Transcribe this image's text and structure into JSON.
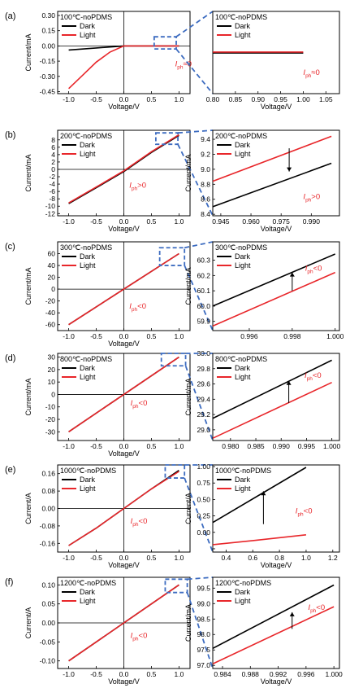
{
  "figure": {
    "colors": {
      "dark": "#000000",
      "light": "#e8262a",
      "zoom": "#3d6cc0",
      "axis": "#000000"
    }
  },
  "chart_data": [
    {
      "panel": "(a)",
      "side": "main",
      "type": "line",
      "title": "100℃-noPDMS",
      "xlabel": "Voltage/V",
      "ylabel": "Current/mA",
      "xlim": [
        -1.2,
        1.2
      ],
      "ylim": [
        -0.47,
        0.34
      ],
      "xticks": [
        -1.0,
        -0.5,
        0.0,
        0.5,
        1.0
      ],
      "xticklabels": [
        "-1.0",
        "-0.5",
        "0.0",
        "0.5",
        "1.0"
      ],
      "yticks": [
        0.3,
        0.15,
        0.0,
        -0.15,
        -0.3,
        -0.45
      ],
      "yticklabels": [
        "0.30",
        "0.15",
        "0.00",
        "-0.15",
        "-0.30",
        "-0.45"
      ],
      "series": [
        {
          "name": "Dark",
          "x": [
            -1.0,
            -0.5,
            0.0,
            0.5,
            1.0
          ],
          "y": [
            -0.04,
            -0.02,
            0.0,
            0.0,
            0.0
          ]
        },
        {
          "name": "Light",
          "x": [
            -1.0,
            -0.75,
            -0.5,
            -0.25,
            0.0,
            0.5,
            1.0
          ],
          "y": [
            -0.42,
            -0.29,
            -0.16,
            -0.06,
            0.0,
            0.0,
            0.0
          ]
        }
      ],
      "annotation": "ph",
      "annotation_sym": "≈",
      "annotation_val": "0",
      "ann_x": 0.93,
      "ann_y": -0.2
    },
    {
      "panel": "(a)",
      "side": "zoom",
      "type": "line",
      "title": "100℃-noPDMS",
      "xlabel": "Voltage/V",
      "ylabel": "",
      "xlim": [
        0.8,
        1.08
      ],
      "ylim": [
        -0.42,
        0.42
      ],
      "xticks": [
        0.8,
        0.85,
        0.9,
        0.95,
        1.0,
        1.05
      ],
      "xticklabels": [
        "0.80",
        "0.85",
        "0.90",
        "0.95",
        "1.00",
        "1.05"
      ],
      "yticks": [],
      "yticklabels": [],
      "series": [
        {
          "name": "Dark",
          "x": [
            0.8,
            1.0
          ],
          "y": [
            -0.005,
            -0.005
          ]
        },
        {
          "name": "Light",
          "x": [
            0.8,
            1.0
          ],
          "y": [
            0.005,
            0.005
          ]
        }
      ],
      "annotation": "ph",
      "annotation_sym": "≈",
      "annotation_val": "0",
      "ann_x": 1.0,
      "ann_y": -0.23
    },
    {
      "panel": "(b)",
      "side": "main",
      "type": "line",
      "title": "200℃-noPDMS",
      "xlabel": "Voltage/V",
      "ylabel": "Current/mA",
      "xlim": [
        -1.2,
        1.2
      ],
      "ylim": [
        -12.6,
        10.6
      ],
      "xticks": [
        -1.0,
        -0.5,
        0.0,
        0.5,
        1.0
      ],
      "xticklabels": [
        "-1.0",
        "-0.5",
        "0.0",
        "0.5",
        "1.0"
      ],
      "yticks": [
        8,
        6,
        4,
        2,
        0,
        -2,
        -4,
        -6,
        -8,
        -10,
        -12
      ],
      "yticklabels": [
        "8",
        "6",
        "4",
        "2",
        "0",
        "-2",
        "-4",
        "-6",
        "-8",
        "-10",
        "-12"
      ],
      "series": [
        {
          "name": "Dark",
          "x": [
            -1.0,
            -0.5,
            0.0,
            0.5,
            1.0
          ],
          "y": [
            -9.3,
            -5.0,
            -0.6,
            4.6,
            9.2
          ]
        },
        {
          "name": "Light",
          "x": [
            -1.0,
            -0.5,
            0.0,
            0.5,
            1.0
          ],
          "y": [
            -9.1,
            -4.8,
            -0.4,
            4.8,
            9.4
          ]
        }
      ],
      "annotation": "ph",
      "annotation_sym": ">",
      "annotation_val": "0",
      "ann_x": 0.1,
      "ann_y": -5.0
    },
    {
      "panel": "(b)",
      "side": "zoom",
      "type": "line",
      "title": "200℃-noPDMS",
      "xlabel": "Voltage/V",
      "ylabel": "Current/mA",
      "xlim": [
        0.941,
        1.004
      ],
      "ylim": [
        8.38,
        9.52
      ],
      "xticks": [
        0.945,
        0.96,
        0.975,
        0.99
      ],
      "xticklabels": [
        "0.945",
        "0.960",
        "0.975",
        "0.990"
      ],
      "yticks": [
        9.4,
        9.2,
        9.0,
        8.8,
        8.6,
        8.4
      ],
      "yticklabels": [
        "9.4",
        "9.2",
        "9.0",
        "8.8",
        "8.6",
        "8.4"
      ],
      "series": [
        {
          "name": "Dark",
          "x": [
            0.941,
            1.0
          ],
          "y": [
            8.5,
            9.08
          ]
        },
        {
          "name": "Light",
          "x": [
            0.941,
            1.0
          ],
          "y": [
            8.84,
            9.44
          ]
        }
      ],
      "arrow": {
        "x": 0.979,
        "y1": 9.28,
        "y2": 8.97
      },
      "annotation": "ph",
      "annotation_sym": ">",
      "annotation_val": "0",
      "ann_x": 0.986,
      "ann_y": 8.6
    },
    {
      "panel": "(c)",
      "side": "main",
      "type": "line",
      "title": "300℃-noPDMS",
      "xlabel": "Voltage/V",
      "ylabel": "Current/mA",
      "xlim": [
        -1.2,
        1.2
      ],
      "ylim": [
        -70,
        80
      ],
      "xticks": [
        -1.0,
        -0.5,
        0.0,
        0.5,
        1.0
      ],
      "xticklabels": [
        "-1.0",
        "-0.5",
        "0.0",
        "0.5",
        "1.0"
      ],
      "yticks": [
        60,
        40,
        20,
        0,
        -20,
        -40,
        -60
      ],
      "yticklabels": [
        "60",
        "40",
        "20",
        "0",
        "-20",
        "-40",
        "-60"
      ],
      "series": [
        {
          "name": "Dark",
          "x": [
            -1.0,
            0.0,
            1.0
          ],
          "y": [
            -60,
            0,
            60
          ]
        },
        {
          "name": "Light",
          "x": [
            -1.0,
            0.0,
            1.0
          ],
          "y": [
            -60,
            0,
            60
          ]
        }
      ],
      "annotation": "ph",
      "annotation_sym": "<",
      "annotation_val": "0",
      "ann_x": 0.1,
      "ann_y": -33
    },
    {
      "panel": "(c)",
      "side": "zoom",
      "type": "line",
      "title": "300℃-noPDMS",
      "xlabel": "",
      "ylabel": "Current/mA",
      "xlim": [
        0.9943,
        1.0002
      ],
      "ylim": [
        59.84,
        60.42
      ],
      "xticks": [
        0.996,
        0.998,
        1.0
      ],
      "xticklabels": [
        "0.996",
        "0.998",
        "1.000"
      ],
      "yticks": [
        60.3,
        60.2,
        60.1,
        60.0,
        59.9
      ],
      "yticklabels": [
        "60.3",
        "60.2",
        "60.1",
        "60.0",
        "59.9"
      ],
      "series": [
        {
          "name": "Dark",
          "x": [
            0.9943,
            1.0
          ],
          "y": [
            60.0,
            60.34
          ]
        },
        {
          "name": "Light",
          "x": [
            0.9943,
            1.0
          ],
          "y": [
            59.87,
            60.22
          ]
        }
      ],
      "arrow": {
        "x": 0.998,
        "y1": 60.1,
        "y2": 60.22
      },
      "annotation": "ph",
      "annotation_sym": "<",
      "annotation_val": "0",
      "ann_x": 0.9986,
      "ann_y": 60.23
    },
    {
      "panel": "(d)",
      "side": "main",
      "type": "line",
      "title": "800℃-noPDMS",
      "xlabel": "Voltage/V",
      "ylabel": "Current/mA",
      "xlim": [
        -1.2,
        1.2
      ],
      "ylim": [
        -37,
        33
      ],
      "xticks": [
        -1.0,
        -0.5,
        0.0,
        0.5,
        1.0
      ],
      "xticklabels": [
        "-1.0",
        "-0.5",
        "0.0",
        "0.5",
        "1.0"
      ],
      "yticks": [
        30,
        20,
        10,
        0,
        -10,
        -20,
        -30
      ],
      "yticklabels": [
        "30",
        "20",
        "10",
        "0",
        "-10",
        "-20",
        "-30"
      ],
      "series": [
        {
          "name": "Dark",
          "x": [
            -1.0,
            0.0,
            1.0
          ],
          "y": [
            -30,
            0,
            30
          ]
        },
        {
          "name": "Light",
          "x": [
            -1.0,
            0.0,
            1.0
          ],
          "y": [
            -30,
            0,
            30
          ]
        }
      ],
      "annotation": "ph",
      "annotation_sym": "<",
      "annotation_val": "0",
      "ann_x": 0.12,
      "ann_y": -9
    },
    {
      "panel": "(d)",
      "side": "zoom",
      "type": "line",
      "title": "800℃-noPDMS",
      "xlabel": "",
      "ylabel": "Current/mA",
      "xlim": [
        0.9765,
        1.0015
      ],
      "ylim": [
        28.86,
        30.0
      ],
      "xticks": [
        0.98,
        0.985,
        0.99,
        0.995,
        1.0
      ],
      "xticklabels": [
        "0.980",
        "0.985",
        "0.990",
        "0.995",
        "1.000"
      ],
      "yticks": [
        30.0,
        29.8,
        29.6,
        29.4,
        29.2,
        29.0
      ],
      "yticklabels": [
        "30.0",
        "29.8",
        "29.6",
        "29.4",
        "29.2",
        "29.0"
      ],
      "series": [
        {
          "name": "Dark",
          "x": [
            0.9765,
            1.0
          ],
          "y": [
            29.15,
            29.91
          ]
        },
        {
          "name": "Light",
          "x": [
            0.9765,
            1.0
          ],
          "y": [
            28.89,
            29.62
          ]
        }
      ],
      "arrow": {
        "x": 0.9915,
        "y1": 29.35,
        "y2": 29.64
      },
      "annotation": "ph",
      "annotation_sym": "<",
      "annotation_val": "0",
      "ann_x": 0.9946,
      "ann_y": 29.68
    },
    {
      "panel": "(e)",
      "side": "main",
      "type": "line",
      "title": "1000℃-noPDMS",
      "xlabel": "Voltage/V",
      "ylabel": "Current/A",
      "xlim": [
        -1.2,
        1.2
      ],
      "ylim": [
        -0.2,
        0.2
      ],
      "xticks": [
        -1.0,
        -0.5,
        0.0,
        0.5,
        1.0
      ],
      "xticklabels": [
        "-1.0",
        "-0.5",
        "0.0",
        "0.5",
        "1.0"
      ],
      "yticks": [
        0.16,
        0.08,
        0.0,
        -0.08,
        -0.16
      ],
      "yticklabels": [
        "0.16",
        "0.08",
        "0.00",
        "-0.08",
        "-0.16"
      ],
      "series": [
        {
          "name": "Dark",
          "x": [
            -1.0,
            -0.5,
            0.0,
            0.5,
            1.0
          ],
          "y": [
            -0.17,
            -0.09,
            0.0,
            0.09,
            0.175
          ]
        },
        {
          "name": "Light",
          "x": [
            -1.0,
            -0.5,
            0.0,
            0.5,
            1.0
          ],
          "y": [
            -0.17,
            -0.09,
            0.0,
            0.09,
            0.17
          ]
        }
      ],
      "annotation": "ph",
      "annotation_sym": "<",
      "annotation_val": "0",
      "ann_x": 0.12,
      "ann_y": -0.07
    },
    {
      "panel": "(e)",
      "side": "zoom",
      "type": "line",
      "title": "1000℃-noPDMS",
      "xlabel": "Voltage/V",
      "ylabel": "Current/A",
      "xlim": [
        0.3,
        1.25
      ],
      "ylim": [
        -0.04,
        1.02
      ],
      "xticks": [
        0.4,
        0.6,
        0.8,
        1.0,
        1.2
      ],
      "xticklabels": [
        "0.4",
        "0.6",
        "0.8",
        "1.0",
        "1.2"
      ],
      "yticks": [
        1.0,
        0.8,
        0.6,
        0.4,
        0.2,
        0.0
      ],
      "yticklabels": [
        "1.00",
        "0.75",
        "0.50",
        "0.25",
        "0.00"
      ],
      "series": [
        {
          "name": "Dark",
          "x": [
            0.3,
            1.0
          ],
          "y": [
            0.32,
            0.99
          ]
        },
        {
          "name": "Light",
          "x": [
            0.3,
            0.6,
            1.0
          ],
          "y": [
            0.05,
            0.1,
            0.17
          ]
        }
      ],
      "arrow": {
        "x": 0.68,
        "y1": 0.3,
        "y2": 0.7
      },
      "annotation": "ph",
      "annotation_sym": "<",
      "annotation_val": "0",
      "ann_x": 0.92,
      "ann_y": 0.43
    },
    {
      "panel": "(f)",
      "side": "main",
      "type": "line",
      "title": "1200℃-noPDMS",
      "xlabel": "Voltage/V",
      "ylabel": "Current/A",
      "xlim": [
        -1.2,
        1.2
      ],
      "ylim": [
        -0.12,
        0.12
      ],
      "xticks": [
        -1.0,
        -0.5,
        0.0,
        0.5,
        1.0
      ],
      "xticklabels": [
        "-1.0",
        "-0.5",
        "0.0",
        "0.5",
        "1.0"
      ],
      "yticks": [
        0.1,
        0.05,
        0.0,
        -0.05,
        -0.1
      ],
      "yticklabels": [
        "0.10",
        "0.05",
        "0.00",
        "-0.05",
        "-0.10"
      ],
      "series": [
        {
          "name": "Dark",
          "x": [
            -1.0,
            0.0,
            1.0
          ],
          "y": [
            -0.1,
            0.0,
            0.1
          ]
        },
        {
          "name": "Light",
          "x": [
            -1.0,
            0.0,
            1.0
          ],
          "y": [
            -0.1,
            0.0,
            0.1
          ]
        }
      ],
      "annotation": "ph",
      "annotation_sym": "<",
      "annotation_val": "0",
      "ann_x": 0.12,
      "ann_y": -0.04
    },
    {
      "panel": "(f)",
      "side": "zoom",
      "type": "line",
      "title": "1200℃-noPDMS",
      "xlabel": "Voltage/V",
      "ylabel": "Current/mA",
      "xlim": [
        0.9826,
        1.0008
      ],
      "ylim": [
        96.9,
        99.85
      ],
      "xticks": [
        0.984,
        0.988,
        0.992,
        0.996,
        1.0
      ],
      "xticklabels": [
        "0.984",
        "0.988",
        "0.992",
        "0.996",
        "1.000"
      ],
      "yticks": [
        99.5,
        99.0,
        98.5,
        98.0,
        97.5,
        97.0
      ],
      "yticklabels": [
        "99.5",
        "99.0",
        "98.5",
        "98.0",
        "97.5",
        "97.0"
      ],
      "series": [
        {
          "name": "Dark",
          "x": [
            0.9826,
            1.0
          ],
          "y": [
            97.55,
            99.6
          ]
        },
        {
          "name": "Light",
          "x": [
            0.9826,
            1.0
          ],
          "y": [
            97.05,
            98.9
          ]
        }
      ],
      "arrow": {
        "x": 0.994,
        "y1": 98.18,
        "y2": 98.72
      },
      "annotation": "ph",
      "annotation_sym": "<",
      "annotation_val": "0",
      "ann_x": 0.9963,
      "ann_y": 98.8
    }
  ],
  "zooms": [
    {
      "main_x": [
        0.55,
        0.95
      ],
      "main_y": [
        -0.03,
        0.09
      ]
    },
    {
      "main_x": [
        0.58,
        0.98
      ],
      "main_y": [
        6.8,
        9.9
      ]
    },
    {
      "main_x": [
        0.65,
        1.1
      ],
      "main_y": [
        40,
        70
      ]
    },
    {
      "main_x": [
        0.68,
        1.12
      ],
      "main_y": [
        23,
        33
      ]
    },
    {
      "main_x": [
        0.75,
        1.1
      ],
      "main_y": [
        0.14,
        0.2
      ]
    },
    {
      "main_x": [
        0.75,
        1.15
      ],
      "main_y": [
        0.08,
        0.115
      ]
    }
  ]
}
